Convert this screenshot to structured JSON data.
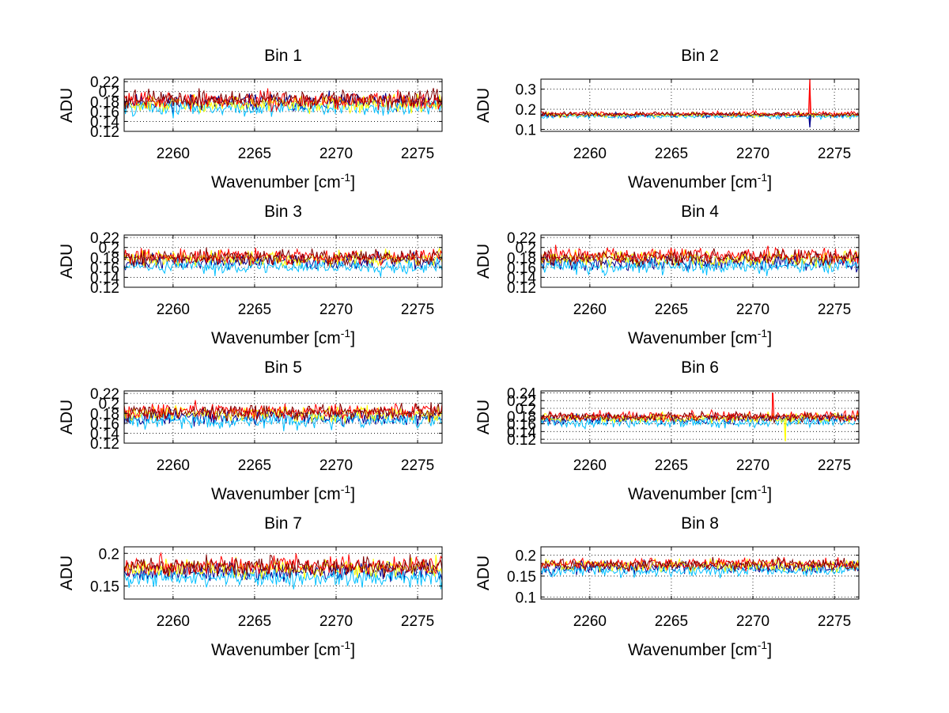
{
  "figure": {
    "series_colors": [
      "#00008f",
      "#00bfff",
      "#ffff00",
      "#ff0000",
      "#800000"
    ]
  },
  "chart_data": [
    {
      "type": "line",
      "title": "Bin 1",
      "xlabel": "Wavenumber [cm",
      "xlabel_sup": "-1",
      "xlabel_end": "]",
      "ylabel": "ADU",
      "xlim": [
        2257,
        2276.5
      ],
      "ylim": [
        0.12,
        0.225
      ],
      "xticks": [
        2260,
        2265,
        2270,
        2275
      ],
      "xtick_labels": [
        "2260",
        "2265",
        "2270",
        "2275"
      ],
      "yticks": [
        0.12,
        0.14,
        0.16,
        0.18,
        0.2,
        0.22
      ],
      "ytick_labels": [
        "0.12",
        "0.14",
        "0.16",
        "0.18",
        "0.2",
        "0.22"
      ],
      "series_base": [
        0.178,
        0.168,
        0.175,
        0.182,
        0.185
      ],
      "noise": 0.012,
      "spikes": [],
      "seed": 11
    },
    {
      "type": "line",
      "title": "Bin 2",
      "xlabel": "Wavenumber [cm",
      "xlabel_sup": "-1",
      "xlabel_end": "]",
      "ylabel": "ADU",
      "xlim": [
        2257,
        2276.5
      ],
      "ylim": [
        0.09,
        0.35
      ],
      "xticks": [
        2260,
        2265,
        2270,
        2275
      ],
      "xtick_labels": [
        "2260",
        "2265",
        "2270",
        "2275"
      ],
      "yticks": [
        0.1,
        0.2,
        0.3
      ],
      "ytick_labels": [
        "0.1",
        "0.2",
        "0.3"
      ],
      "series_base": [
        0.17,
        0.165,
        0.172,
        0.178,
        0.175
      ],
      "noise": 0.008,
      "spikes": [
        {
          "x": 2273.5,
          "y": 0.35,
          "series": 3
        },
        {
          "x": 2273.5,
          "y": 0.11,
          "series": 0
        }
      ],
      "seed": 23
    },
    {
      "type": "line",
      "title": "Bin 3",
      "xlabel": "Wavenumber [cm",
      "xlabel_sup": "-1",
      "xlabel_end": "]",
      "ylabel": "ADU",
      "xlim": [
        2257,
        2276.5
      ],
      "ylim": [
        0.12,
        0.225
      ],
      "xticks": [
        2260,
        2265,
        2270,
        2275
      ],
      "xtick_labels": [
        "2260",
        "2265",
        "2270",
        "2275"
      ],
      "yticks": [
        0.12,
        0.14,
        0.16,
        0.18,
        0.2,
        0.22
      ],
      "ytick_labels": [
        "0.12",
        "0.14",
        "0.16",
        "0.18",
        "0.2",
        "0.22"
      ],
      "series_base": [
        0.172,
        0.162,
        0.178,
        0.182,
        0.18
      ],
      "noise": 0.011,
      "spikes": [],
      "seed": 37
    },
    {
      "type": "line",
      "title": "Bin 4",
      "xlabel": "Wavenumber [cm",
      "xlabel_sup": "-1",
      "xlabel_end": "]",
      "ylabel": "ADU",
      "xlim": [
        2257,
        2276.5
      ],
      "ylim": [
        0.12,
        0.225
      ],
      "xticks": [
        2260,
        2265,
        2270,
        2275
      ],
      "xtick_labels": [
        "2260",
        "2265",
        "2270",
        "2275"
      ],
      "yticks": [
        0.12,
        0.14,
        0.16,
        0.18,
        0.2,
        0.22
      ],
      "ytick_labels": [
        "0.12",
        "0.14",
        "0.16",
        "0.18",
        "0.2",
        "0.22"
      ],
      "series_base": [
        0.17,
        0.162,
        0.178,
        0.184,
        0.18
      ],
      "noise": 0.011,
      "spikes": [],
      "seed": 41
    },
    {
      "type": "line",
      "title": "Bin 5",
      "xlabel": "Wavenumber [cm",
      "xlabel_sup": "-1",
      "xlabel_end": "]",
      "ylabel": "ADU",
      "xlim": [
        2257,
        2276.5
      ],
      "ylim": [
        0.12,
        0.225
      ],
      "xticks": [
        2260,
        2265,
        2270,
        2275
      ],
      "xtick_labels": [
        "2260",
        "2265",
        "2270",
        "2275"
      ],
      "yticks": [
        0.12,
        0.14,
        0.16,
        0.18,
        0.2,
        0.22
      ],
      "ytick_labels": [
        "0.12",
        "0.14",
        "0.16",
        "0.18",
        "0.2",
        "0.22"
      ],
      "series_base": [
        0.172,
        0.165,
        0.18,
        0.185,
        0.182
      ],
      "noise": 0.011,
      "spikes": [],
      "seed": 53
    },
    {
      "type": "line",
      "title": "Bin 6",
      "xlabel": "Wavenumber [cm",
      "xlabel_sup": "-1",
      "xlabel_end": "]",
      "ylabel": "ADU",
      "xlim": [
        2257,
        2276.5
      ],
      "ylim": [
        0.11,
        0.245
      ],
      "xticks": [
        2260,
        2265,
        2270,
        2275
      ],
      "xtick_labels": [
        "2260",
        "2265",
        "2270",
        "2275"
      ],
      "yticks": [
        0.12,
        0.14,
        0.16,
        0.18,
        0.2,
        0.22,
        0.24
      ],
      "ytick_labels": [
        "0.12",
        "0.14",
        "0.16",
        "0.18",
        "0.2",
        "0.22",
        "0.24"
      ],
      "series_base": [
        0.172,
        0.165,
        0.175,
        0.18,
        0.178
      ],
      "noise": 0.009,
      "spikes": [
        {
          "x": 2271.2,
          "y": 0.24,
          "series": 3
        },
        {
          "x": 2272.0,
          "y": 0.115,
          "series": 2
        }
      ],
      "seed": 67
    },
    {
      "type": "line",
      "title": "Bin 7",
      "xlabel": "Wavenumber [cm",
      "xlabel_sup": "-1",
      "xlabel_end": "]",
      "ylabel": "ADU",
      "xlim": [
        2257,
        2276.5
      ],
      "ylim": [
        0.13,
        0.21
      ],
      "xticks": [
        2260,
        2265,
        2270,
        2275
      ],
      "xtick_labels": [
        "2260",
        "2265",
        "2270",
        "2275"
      ],
      "yticks": [
        0.15,
        0.2
      ],
      "ytick_labels": [
        "0.15",
        "0.2"
      ],
      "series_base": [
        0.172,
        0.162,
        0.178,
        0.182,
        0.18
      ],
      "noise": 0.01,
      "spikes": [],
      "seed": 79
    },
    {
      "type": "line",
      "title": "Bin 8",
      "xlabel": "Wavenumber [cm",
      "xlabel_sup": "-1",
      "xlabel_end": "]",
      "ylabel": "ADU",
      "xlim": [
        2257,
        2276.5
      ],
      "ylim": [
        0.095,
        0.22
      ],
      "xticks": [
        2260,
        2265,
        2270,
        2275
      ],
      "xtick_labels": [
        "2260",
        "2265",
        "2270",
        "2275"
      ],
      "yticks": [
        0.1,
        0.15,
        0.2
      ],
      "ytick_labels": [
        "0.1",
        "0.15",
        "0.2"
      ],
      "series_base": [
        0.17,
        0.162,
        0.176,
        0.18,
        0.178
      ],
      "noise": 0.01,
      "spikes": [],
      "seed": 97
    }
  ]
}
